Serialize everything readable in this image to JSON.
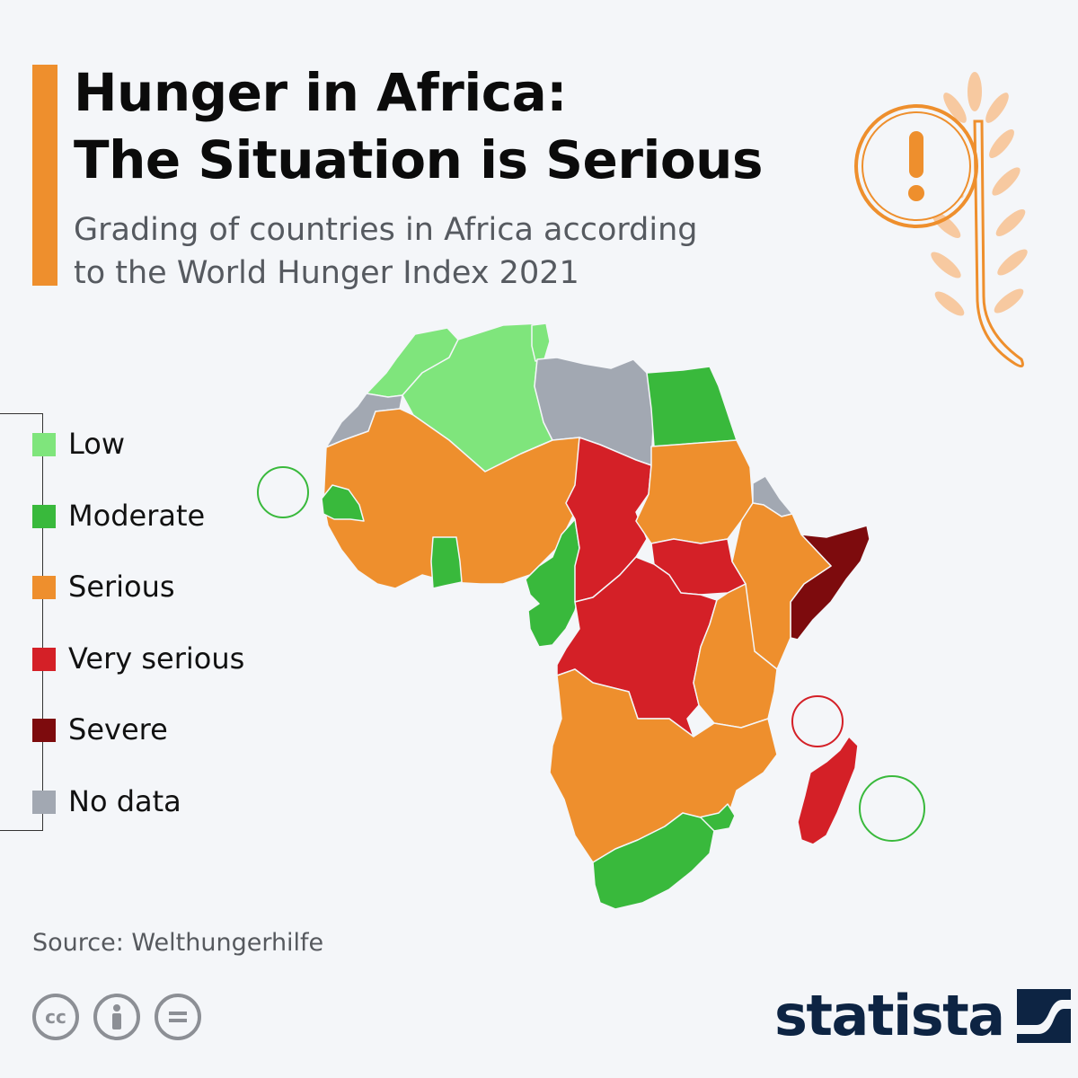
{
  "header": {
    "title_line1": "Hunger in Africa:",
    "title_line2": "The Situation is Serious",
    "subtitle_line1": "Grading of countries in Africa according",
    "subtitle_line2": "to the World Hunger Index 2021"
  },
  "legend": {
    "items": [
      {
        "key": "low",
        "label": "Low",
        "color": "#7fe57c"
      },
      {
        "key": "moderate",
        "label": "Moderate",
        "color": "#39b93c"
      },
      {
        "key": "serious",
        "label": "Serious",
        "color": "#ee8f2d"
      },
      {
        "key": "very_serious",
        "label": "Very serious",
        "color": "#d42027"
      },
      {
        "key": "severe",
        "label": "Severe",
        "color": "#7d0b0d"
      },
      {
        "key": "no_data",
        "label": "No data",
        "color": "#a2a8b2"
      }
    ]
  },
  "colors": {
    "accent": "#ee8f2d",
    "background": "#f4f6f9",
    "brand": "#0d2443",
    "border": "#f4f6f9"
  },
  "footer": {
    "source": "Source: Welthungerhilfe",
    "license_icons": [
      "creative-commons-icon",
      "attribution-icon",
      "no-derivatives-icon"
    ],
    "brand": "statista"
  }
}
